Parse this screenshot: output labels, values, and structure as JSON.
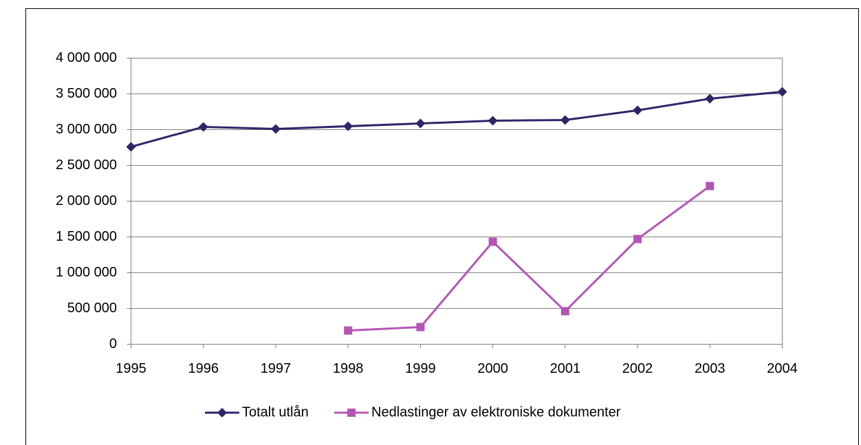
{
  "chart_data": {
    "type": "line",
    "categories": [
      "1995",
      "1996",
      "1997",
      "1998",
      "1999",
      "2000",
      "2001",
      "2002",
      "2003",
      "2004"
    ],
    "series": [
      {
        "name": "Totalt utlån",
        "color": "#2f2567",
        "marker": "diamond",
        "values": [
          2760000,
          3038000,
          3010000,
          3048000,
          3087000,
          3125000,
          3135000,
          3270000,
          3433000,
          3529000
        ]
      },
      {
        "name": "Nedlastinger av elektroniske dokumenter",
        "color": "#b455b6",
        "marker": "square",
        "values": [
          null,
          null,
          null,
          192000,
          240000,
          1433000,
          462000,
          1471000,
          2212000,
          null
        ]
      }
    ],
    "ylim": [
      0,
      4000000
    ],
    "yticks": [
      0,
      {
        "value": 500000,
        "label": "500 000"
      },
      {
        "value": 1000000,
        "label": "1 000 000"
      },
      {
        "value": 1500000,
        "label": "1 500 000"
      },
      {
        "value": 2000000,
        "label": "2 000 000"
      },
      {
        "value": 2500000,
        "label": "2 500 000"
      },
      {
        "value": 3000000,
        "label": "3 000 000"
      },
      {
        "value": 3500000,
        "label": "3 500 000"
      },
      {
        "value": 4000000,
        "label": "4 000 000"
      }
    ],
    "grid": true,
    "legend": "bottom"
  }
}
